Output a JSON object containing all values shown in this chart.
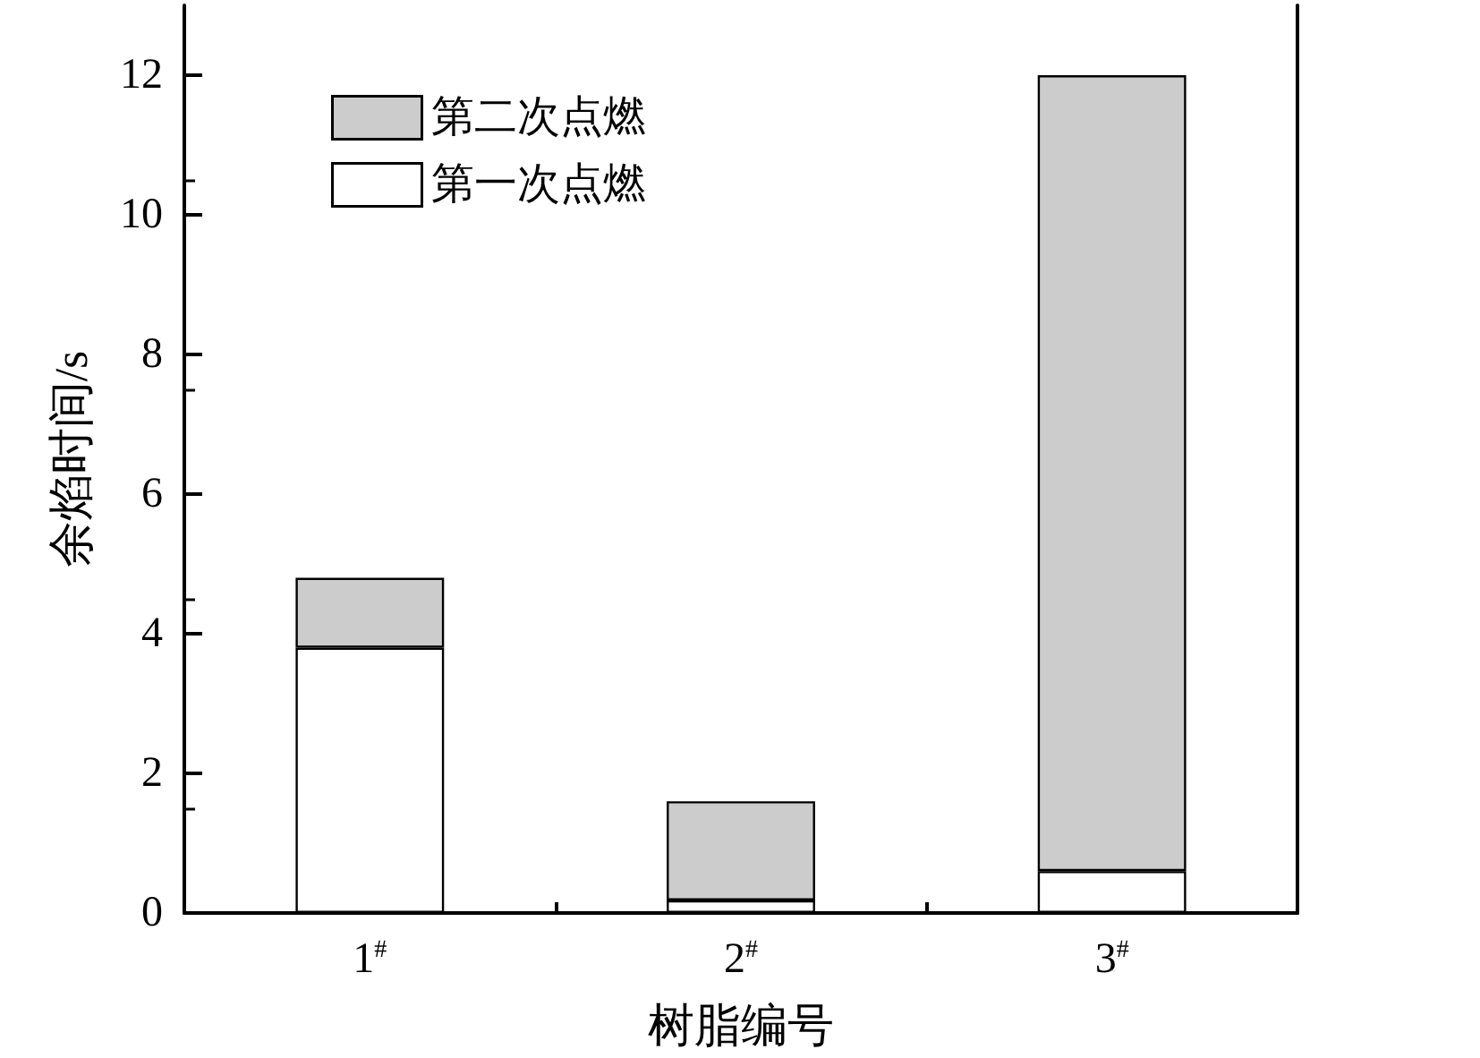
{
  "chart_data": {
    "type": "bar",
    "stacked": true,
    "xlabel": "树脂编号",
    "ylabel": "余焰时间/s",
    "categories": [
      "1$^{#}$",
      "2$^{#}$",
      "3$^{#}$"
    ],
    "series": [
      {
        "name": "第一次点燃",
        "color": "#ffffff",
        "values": [
          3.8,
          0.18,
          0.6
        ]
      },
      {
        "name": "第二次点燃",
        "color": "#cccccc",
        "values": [
          1.0,
          1.42,
          11.4
        ]
      }
    ],
    "ylim": [
      0,
      13
    ],
    "yticks": [
      0,
      2,
      4,
      6,
      8,
      10,
      12
    ],
    "grid": false,
    "legend": "top left"
  }
}
